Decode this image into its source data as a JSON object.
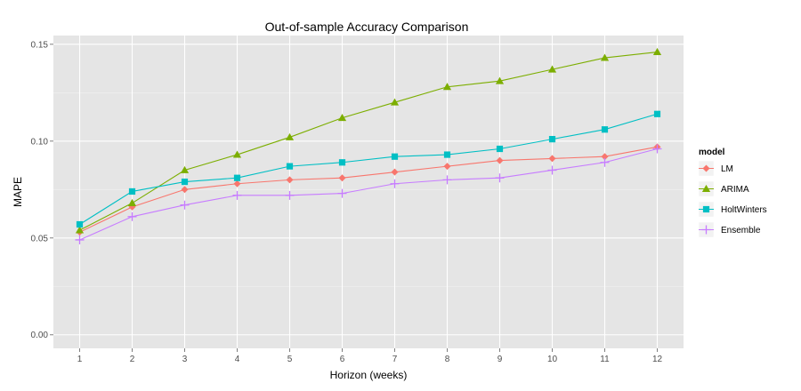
{
  "chart_data": {
    "type": "line",
    "title": "Out-of-sample Accuracy Comparison",
    "xlabel": "Horizon (weeks)",
    "ylabel": "MAPE",
    "x": [
      1,
      2,
      3,
      4,
      5,
      6,
      7,
      8,
      9,
      10,
      11,
      12
    ],
    "x_tick_labels": [
      "1",
      "2",
      "3",
      "4",
      "5",
      "6",
      "7",
      "8",
      "9",
      "10",
      "11",
      "12"
    ],
    "y_ticks": [
      0.0,
      0.05,
      0.1,
      0.15
    ],
    "y_tick_labels": [
      "0.00",
      "0.05",
      "0.10",
      "0.15"
    ],
    "xlim": [
      0.5,
      12.5
    ],
    "ylim": [
      -0.007,
      0.1545
    ],
    "grid": true,
    "legend": {
      "title": "model",
      "placement": "right"
    },
    "series": [
      {
        "name": "LM",
        "color": "#F8766D",
        "marker": "diamond",
        "values": [
          0.053,
          0.066,
          0.075,
          0.078,
          0.08,
          0.081,
          0.084,
          0.087,
          0.09,
          0.091,
          0.092,
          0.097
        ]
      },
      {
        "name": "ARIMA",
        "color": "#7CAE00",
        "marker": "triangle",
        "values": [
          0.054,
          0.068,
          0.085,
          0.093,
          0.102,
          0.112,
          0.12,
          0.128,
          0.131,
          0.137,
          0.143,
          0.146
        ]
      },
      {
        "name": "HoltWinters",
        "color": "#00BFC4",
        "marker": "square",
        "values": [
          0.057,
          0.074,
          0.079,
          0.081,
          0.087,
          0.089,
          0.092,
          0.093,
          0.096,
          0.101,
          0.106,
          0.114
        ]
      },
      {
        "name": "Ensemble",
        "color": "#C77CFF",
        "marker": "plus",
        "values": [
          0.049,
          0.061,
          0.067,
          0.072,
          0.072,
          0.073,
          0.078,
          0.08,
          0.081,
          0.085,
          0.089,
          0.096
        ]
      }
    ]
  }
}
